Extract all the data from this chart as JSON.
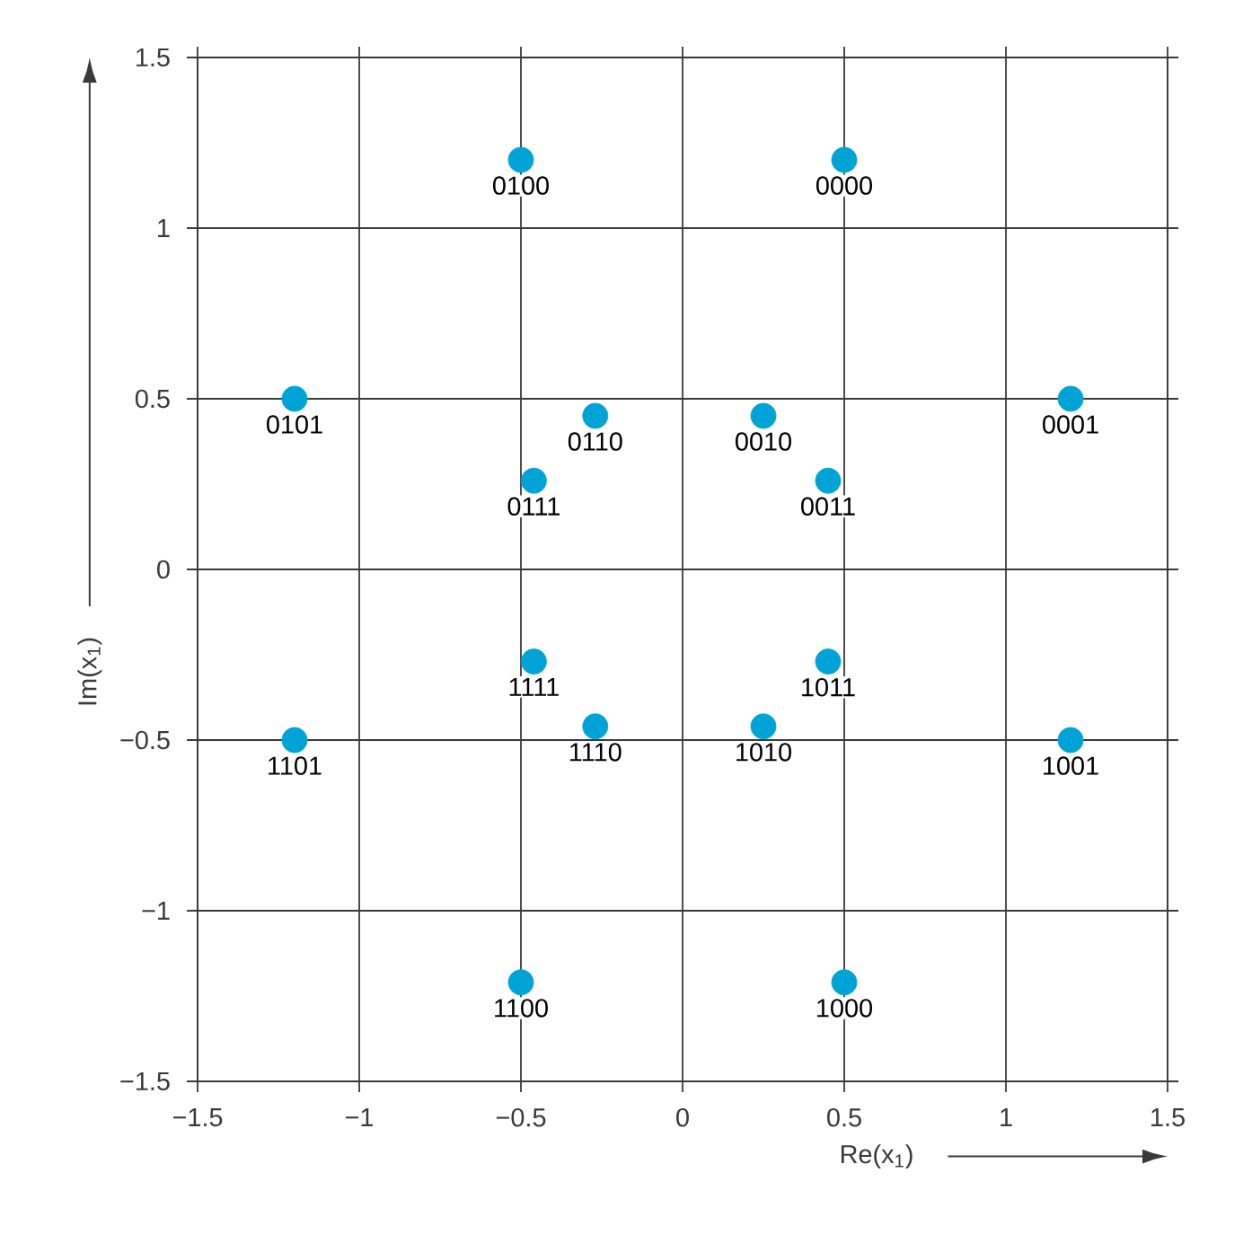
{
  "chart_data": {
    "type": "scatter",
    "xlabel": "Re(x$_{1}$)",
    "ylabel": "Im(x$_{1}$)",
    "x": [
      -0.5,
      0.5,
      -1.2,
      1.2,
      -0.27,
      0.25,
      -0.46,
      0.45,
      -0.46,
      0.45,
      -0.27,
      0.25,
      -1.2,
      1.2,
      -0.5,
      0.5
    ],
    "values": [
      1.2,
      1.2,
      0.5,
      0.5,
      0.45,
      0.45,
      0.26,
      0.26,
      -0.27,
      -0.27,
      -0.46,
      -0.46,
      -0.5,
      -0.5,
      -1.21,
      -1.21
    ],
    "color": "#00a3d6",
    "grid": true,
    "xlim": [
      -1.5,
      1.5
    ],
    "ylim": [
      -1.5,
      1.5
    ],
    "xticks": [
      {
        "value": -1.5,
        "label": "−1.5"
      },
      {
        "value": -1,
        "label": "−1"
      },
      {
        "value": -0.5,
        "label": "−0.5"
      },
      0,
      0.5,
      1,
      1.5
    ],
    "yticks": [
      {
        "value": -1.5,
        "label": "−1.5"
      },
      {
        "value": -1,
        "label": "−1"
      },
      {
        "value": -0.5,
        "label": "−0.5"
      },
      0,
      0.5,
      1,
      1.5
    ],
    "annotations": [
      {
        "text": "0100",
        "x": -0.5,
        "y": 1.2
      },
      {
        "text": "0000",
        "x": 0.5,
        "y": 1.2
      },
      {
        "text": "0101",
        "x": -1.2,
        "y": 0.5
      },
      {
        "text": "0001",
        "x": 1.2,
        "y": 0.5
      },
      {
        "text": "0110",
        "x": -0.27,
        "y": 0.45
      },
      {
        "text": "0010",
        "x": 0.25,
        "y": 0.45
      },
      {
        "text": "0111",
        "x": -0.46,
        "y": 0.26
      },
      {
        "text": "0011",
        "x": 0.45,
        "y": 0.26
      },
      {
        "text": "1111",
        "x": -0.46,
        "y": -0.27
      },
      {
        "text": "1011",
        "x": 0.45,
        "y": -0.27
      },
      {
        "text": "1110",
        "x": -0.27,
        "y": -0.46
      },
      {
        "text": "1010",
        "x": 0.25,
        "y": -0.46
      },
      {
        "text": "1101",
        "x": -1.2,
        "y": -0.5
      },
      {
        "text": "1001",
        "x": 1.2,
        "y": -0.5
      },
      {
        "text": "1100",
        "x": -0.5,
        "y": -1.21
      },
      {
        "text": "1000",
        "x": 0.5,
        "y": -1.21
      }
    ]
  }
}
